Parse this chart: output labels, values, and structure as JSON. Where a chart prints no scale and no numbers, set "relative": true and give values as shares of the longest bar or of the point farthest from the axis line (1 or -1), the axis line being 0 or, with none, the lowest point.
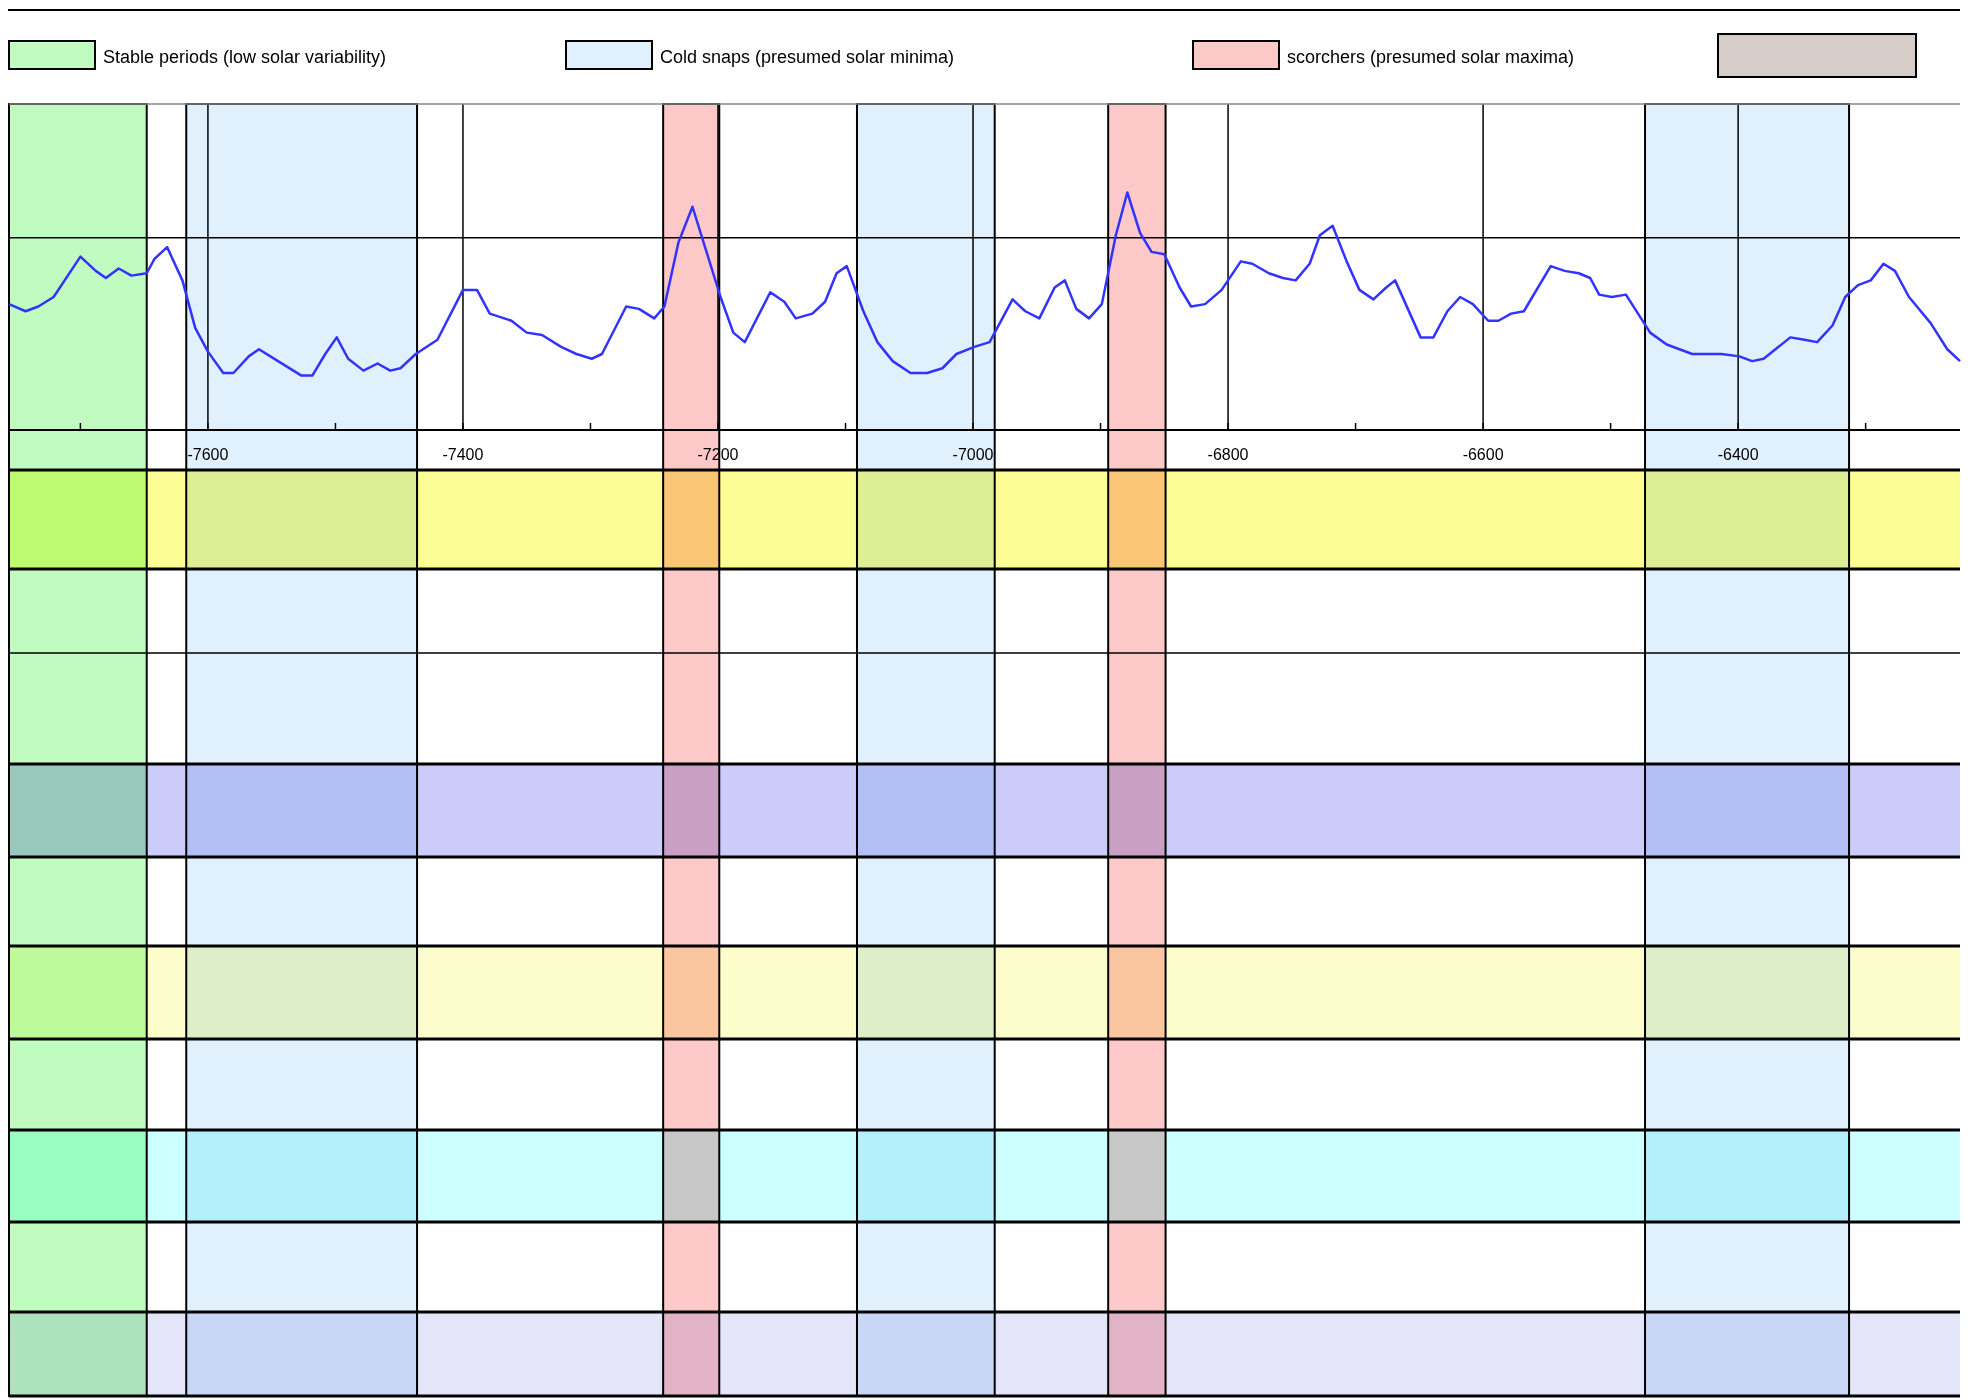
{
  "chart_data": {
    "type": "line",
    "relative": true,
    "x": [
      -7756,
      -7743,
      -7733,
      -7721,
      -7700,
      -7688,
      -7680,
      -7670,
      -7660,
      -7648,
      -7642,
      -7632,
      -7620,
      -7610,
      -7600,
      -7588,
      -7580,
      -7568,
      -7560,
      -7545,
      -7527,
      -7518,
      -7508,
      -7499,
      -7490,
      -7478,
      -7467,
      -7457,
      -7449,
      -7437,
      -7420,
      -7400,
      -7389,
      -7379,
      -7362,
      -7350,
      -7338,
      -7323,
      -7311,
      -7299,
      -7291,
      -7272,
      -7262,
      -7250,
      -7242,
      -7231,
      -7220,
      -7209,
      -7198,
      -7188,
      -7179,
      -7159,
      -7148,
      -7139,
      -7126,
      -7116,
      -7107,
      -7099,
      -7086,
      -7075,
      -7063,
      -7049,
      -7036,
      -7024,
      -7013,
      -6999,
      -6987,
      -6969,
      -6959,
      -6948,
      -6936,
      -6928,
      -6919,
      -6909,
      -6899,
      -6888,
      -6879,
      -6869,
      -6860,
      -6850,
      -6838,
      -6829,
      -6818,
      -6805,
      -6790,
      -6781,
      -6768,
      -6757,
      -6747,
      -6736,
      -6728,
      -6718,
      -6707,
      -6697,
      -6686,
      -6676,
      -6669,
      -6649,
      -6639,
      -6628,
      -6618,
      -6608,
      -6596,
      -6588,
      -6578,
      -6568,
      -6547,
      -6536,
      -6525,
      -6516,
      -6509,
      -6499,
      -6488,
      -6469,
      -6456,
      -6436,
      -6425,
      -6413,
      -6399,
      -6389,
      -6380,
      -6359,
      -6348,
      -6338,
      -6326,
      -6316,
      -6306,
      -6296,
      -6286,
      -6277,
      -6266,
      -6249,
      -6236,
      -6226
    ],
    "series": [
      {
        "color": "#3333ff",
        "values": [
          0.53,
          0.5,
          0.52,
          0.56,
          0.73,
          0.67,
          0.64,
          0.68,
          0.65,
          0.66,
          0.72,
          0.77,
          0.63,
          0.43,
          0.33,
          0.24,
          0.24,
          0.31,
          0.34,
          0.29,
          0.23,
          0.23,
          0.32,
          0.39,
          0.3,
          0.25,
          0.28,
          0.25,
          0.26,
          0.32,
          0.38,
          0.59,
          0.59,
          0.49,
          0.46,
          0.41,
          0.4,
          0.35,
          0.32,
          0.3,
          0.32,
          0.52,
          0.51,
          0.47,
          0.52,
          0.79,
          0.94,
          0.75,
          0.56,
          0.41,
          0.37,
          0.58,
          0.54,
          0.47,
          0.49,
          0.54,
          0.66,
          0.69,
          0.5,
          0.37,
          0.29,
          0.24,
          0.24,
          0.26,
          0.32,
          0.35,
          0.37,
          0.55,
          0.5,
          0.47,
          0.6,
          0.63,
          0.51,
          0.47,
          0.53,
          0.82,
          1,
          0.83,
          0.75,
          0.74,
          0.6,
          0.52,
          0.53,
          0.59,
          0.71,
          0.7,
          0.66,
          0.64,
          0.63,
          0.7,
          0.82,
          0.86,
          0.71,
          0.59,
          0.55,
          0.6,
          0.63,
          0.39,
          0.39,
          0.5,
          0.56,
          0.53,
          0.46,
          0.46,
          0.49,
          0.5,
          0.69,
          0.67,
          0.66,
          0.64,
          0.57,
          0.56,
          0.57,
          0.41,
          0.36,
          0.32,
          0.32,
          0.32,
          0.31,
          0.29,
          0.3,
          0.39,
          0.38,
          0.37,
          0.44,
          0.56,
          0.61,
          0.63,
          0.7,
          0.67,
          0.56,
          0.45,
          0.34,
          0.29
        ]
      }
    ],
    "xlim": [
      -7756,
      -6226
    ],
    "xticks": [
      {
        "value": -7700,
        "label": null
      },
      -7600,
      {
        "value": -7500,
        "label": null
      },
      -7400,
      {
        "value": -7300,
        "label": null
      },
      -7200,
      {
        "value": -7100,
        "label": null
      },
      -7000,
      {
        "value": -6900,
        "label": null
      },
      -6800,
      {
        "value": -6700,
        "label": null
      },
      -6600,
      {
        "value": -6500,
        "label": null
      },
      -6400,
      {
        "value": -6300,
        "label": null
      }
    ],
    "grid": "x",
    "legend": "top",
    "ref_lines": [
      {
        "axis": "y",
        "value": 0.81,
        "color": "#000000"
      }
    ],
    "bands": [
      {
        "axis": "x",
        "from": -7756,
        "to": -7648,
        "color": "#c0fcc0",
        "label": "Stable periods (low solar variability)"
      },
      {
        "axis": "x",
        "from": -7617,
        "to": -7436,
        "color": "#e0f0fc",
        "label": "Cold snaps (presumed solar minima)"
      },
      {
        "axis": "x",
        "from": -7243,
        "to": -7199,
        "color": "#fcc8c8",
        "label": "scorchers (presumed solar maxima)"
      },
      {
        "axis": "x",
        "from": -7091,
        "to": -6983,
        "color": "#e0f0fc"
      },
      {
        "axis": "x",
        "from": -6894,
        "to": -6849,
        "color": "#fcc8c8"
      },
      {
        "axis": "x",
        "from": -6473,
        "to": -6313,
        "color": "#e0f0fc"
      }
    ]
  }
}
